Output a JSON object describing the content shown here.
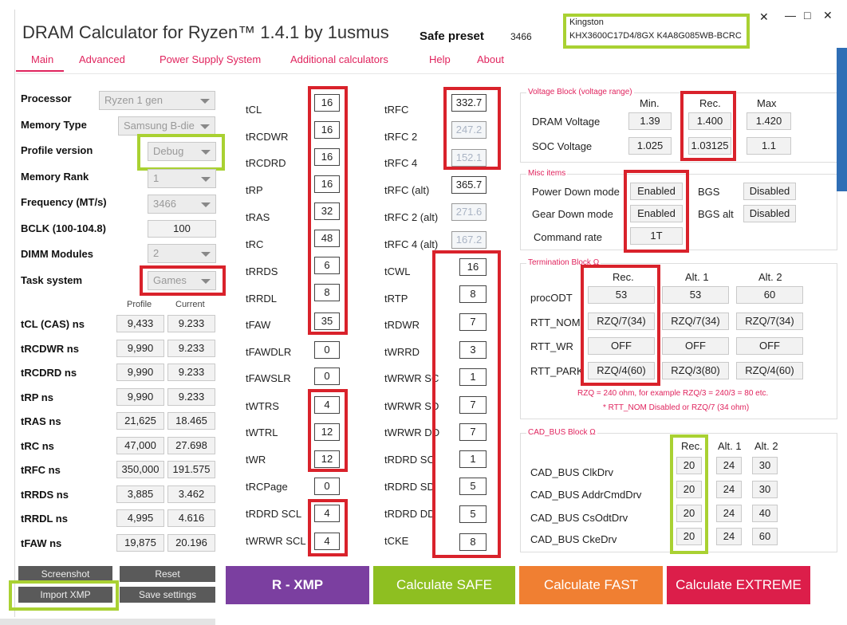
{
  "app": {
    "title": "DRAM Calculator for Ryzen™ 1.4.1 by 1usmus",
    "preset_label": "Safe preset",
    "preset_value": "3466",
    "kingston_brand": "Kingston",
    "kingston_part": "KHX3600C17D4/8GX K4A8G085WB-BCRC",
    "window_controls": [
      "✕",
      "—",
      "□",
      "✕"
    ]
  },
  "tabs": [
    "Main",
    "Advanced",
    "Power Supply System",
    "Additional calculators",
    "Help",
    "About"
  ],
  "settings": [
    {
      "label": "Processor",
      "value": "Ryzen 1 gen"
    },
    {
      "label": "Memory Type",
      "value": "Samsung B-die"
    },
    {
      "label": "Profile version",
      "value": "Debug"
    },
    {
      "label": "Memory Rank",
      "value": "1"
    },
    {
      "label": "Frequency (MT/s)",
      "value": "3466"
    },
    {
      "label": "BCLK (100-104.8)",
      "value": "100"
    },
    {
      "label": "DIMM Modules",
      "value": "2"
    },
    {
      "label": "Task system",
      "value": "Games"
    }
  ],
  "ns_table": {
    "headers": [
      "Profile",
      "Current"
    ],
    "rows": [
      {
        "label": "tCL (CAS) ns",
        "profile": "9,433",
        "current": "9.233"
      },
      {
        "label": "tRCDWR ns",
        "profile": "9,990",
        "current": "9.233"
      },
      {
        "label": "tRCDRD ns",
        "profile": "9,990",
        "current": "9.233"
      },
      {
        "label": "tRP ns",
        "profile": "9,990",
        "current": "9.233"
      },
      {
        "label": "tRAS ns",
        "profile": "21,625",
        "current": "18.465"
      },
      {
        "label": "tRC ns",
        "profile": "47,000",
        "current": "27.698"
      },
      {
        "label": "tRFC ns",
        "profile": "350,000",
        "current": "191.575"
      },
      {
        "label": "tRRDS ns",
        "profile": "3,885",
        "current": "3.462"
      },
      {
        "label": "tRRDL ns",
        "profile": "4,995",
        "current": "4.616"
      },
      {
        "label": "tFAW ns",
        "profile": "19,875",
        "current": "20.196"
      }
    ]
  },
  "timings_col1": [
    {
      "label": "tCL",
      "value": "16"
    },
    {
      "label": "tRCDWR",
      "value": "16"
    },
    {
      "label": "tRCDRD",
      "value": "16"
    },
    {
      "label": "tRP",
      "value": "16"
    },
    {
      "label": "tRAS",
      "value": "32"
    },
    {
      "label": "tRC",
      "value": "48"
    },
    {
      "label": "tRRDS",
      "value": "6"
    },
    {
      "label": "tRRDL",
      "value": "8"
    },
    {
      "label": "tFAW",
      "value": "35"
    },
    {
      "label": "tFAWDLR",
      "value": "0"
    },
    {
      "label": "tFAWSLR",
      "value": "0"
    },
    {
      "label": "tWTRS",
      "value": "4"
    },
    {
      "label": "tWTRL",
      "value": "12"
    },
    {
      "label": "tWR",
      "value": "12"
    },
    {
      "label": "tRCPage",
      "value": "0"
    },
    {
      "label": "tRDRD SCL",
      "value": "4"
    },
    {
      "label": "tWRWR SCL",
      "value": "4"
    }
  ],
  "timings_col2": [
    {
      "label": "tRFC",
      "value": "332.7"
    },
    {
      "label": "tRFC 2",
      "value": "247.2"
    },
    {
      "label": "tRFC 4",
      "value": "152.1"
    },
    {
      "label": "tRFC (alt)",
      "value": "365.7"
    },
    {
      "label": "tRFC 2 (alt)",
      "value": "271.6"
    },
    {
      "label": "tRFC 4 (alt)",
      "value": "167.2"
    },
    {
      "label": "tCWL",
      "value": "16"
    },
    {
      "label": "tRTP",
      "value": "8"
    },
    {
      "label": "tRDWR",
      "value": "7"
    },
    {
      "label": "tWRRD",
      "value": "3"
    },
    {
      "label": "tWRWR SC",
      "value": "1"
    },
    {
      "label": "tWRWR SD",
      "value": "7"
    },
    {
      "label": "tWRWR DD",
      "value": "7"
    },
    {
      "label": "tRDRD SC",
      "value": "1"
    },
    {
      "label": "tRDRD SD",
      "value": "5"
    },
    {
      "label": "tRDRD DD",
      "value": "5"
    },
    {
      "label": "tCKE",
      "value": "8"
    }
  ],
  "voltage": {
    "title": "Voltage Block (voltage range)",
    "headers": [
      "Min.",
      "Rec.",
      "Max"
    ],
    "rows": [
      {
        "label": "DRAM Voltage",
        "min": "1.39",
        "rec": "1.400",
        "max": "1.420"
      },
      {
        "label": "SOC Voltage",
        "min": "1.025",
        "rec": "1.03125",
        "max": "1.1"
      }
    ]
  },
  "misc": {
    "title": "Misc items",
    "power_down_label": "Power Down mode",
    "power_down_value": "Enabled",
    "bgs_label": "BGS",
    "bgs_value": "Disabled",
    "gear_down_label": "Gear Down mode",
    "gear_down_value": "Enabled",
    "bgs_alt_label": "BGS alt",
    "bgs_alt_value": "Disabled",
    "command_rate_label": "Command rate",
    "command_rate_value": "1T"
  },
  "termination": {
    "title": "Termination Block Ω",
    "headers": [
      "Rec.",
      "Alt. 1",
      "Alt. 2"
    ],
    "rows": [
      {
        "label": "procODT",
        "rec": "53",
        "alt1": "53",
        "alt2": "60"
      },
      {
        "label": "RTT_NOM",
        "rec": "RZQ/7(34)",
        "alt1": "RZQ/7(34)",
        "alt2": "RZQ/7(34)"
      },
      {
        "label": "RTT_WR",
        "rec": "OFF",
        "alt1": "OFF",
        "alt2": "OFF"
      },
      {
        "label": "RTT_PARK",
        "rec": "RZQ/4(60)",
        "alt1": "RZQ/3(80)",
        "alt2": "RZQ/4(60)"
      }
    ],
    "note1": "RZQ = 240 ohm, for example RZQ/3 = 240/3 = 80 etc.",
    "note2": "* RTT_NOM Disabled or RZQ/7 (34 ohm)"
  },
  "cad_bus": {
    "title": "CAD_BUS Block Ω",
    "headers": [
      "Rec.",
      "Alt. 1",
      "Alt. 2"
    ],
    "rows": [
      {
        "label": "CAD_BUS ClkDrv",
        "rec": "20",
        "alt1": "24",
        "alt2": "30"
      },
      {
        "label": "CAD_BUS AddrCmdDrv",
        "rec": "20",
        "alt1": "24",
        "alt2": "30"
      },
      {
        "label": "CAD_BUS CsOdtDrv",
        "rec": "20",
        "alt1": "24",
        "alt2": "40"
      },
      {
        "label": "CAD_BUS CkeDrv",
        "rec": "20",
        "alt1": "24",
        "alt2": "60"
      }
    ]
  },
  "buttons": {
    "screenshot": "Screenshot",
    "reset": "Reset",
    "import_xmp": "Import XMP",
    "save_settings": "Save settings",
    "r_xmp": "R - XMP",
    "calc_safe": "Calculate SAFE",
    "calc_fast": "Calculate FAST",
    "calc_extreme": "Calculate EXTREME"
  },
  "colors": {
    "accent": "#e0245e",
    "r_xmp": "#7b3fa0",
    "safe": "#8ebf21",
    "fast": "#f07f32",
    "extreme": "#dc1e4a",
    "highlight_red": "#d9222b",
    "highlight_lime": "#a9d132"
  }
}
